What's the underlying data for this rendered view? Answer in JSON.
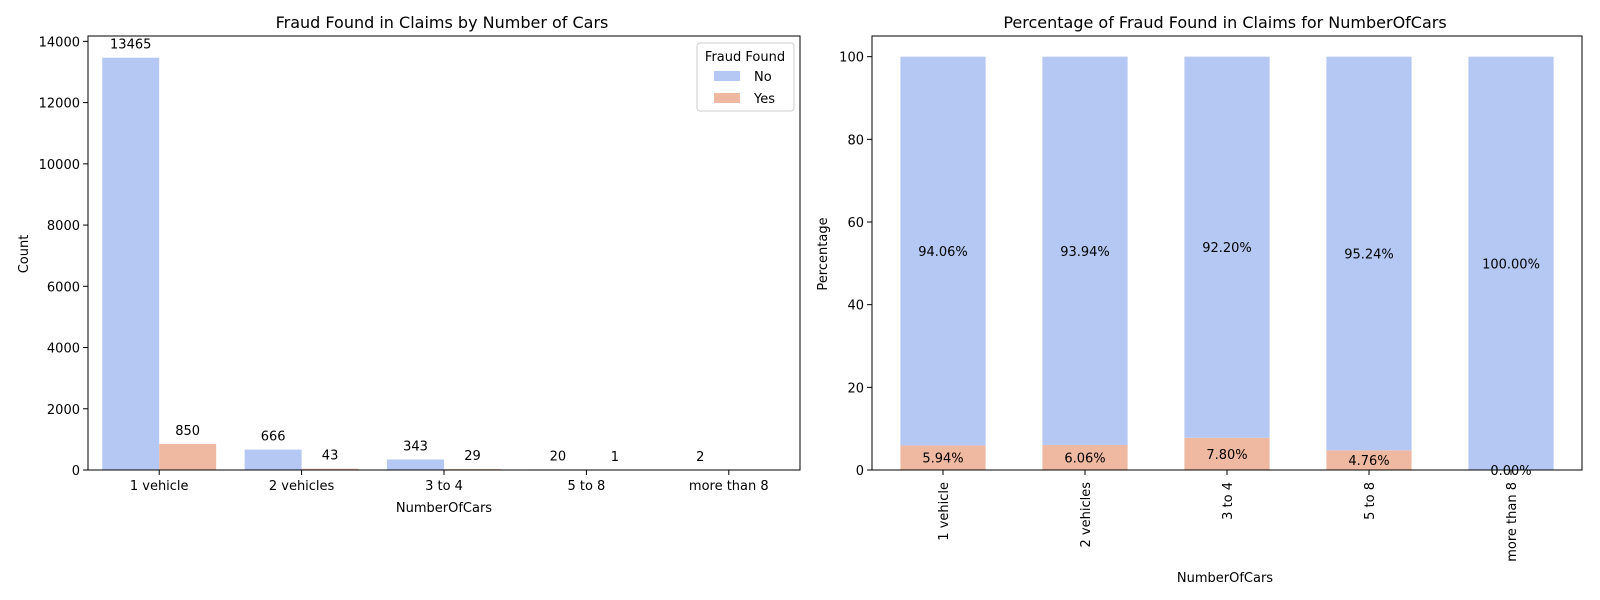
{
  "chart_data": [
    {
      "type": "bar",
      "title": "Fraud Found in Claims by Number of Cars",
      "xlabel": "NumberOfCars",
      "ylabel": "Count",
      "categories": [
        "1 vehicle",
        "2 vehicles",
        "3 to 4",
        "5 to 8",
        "more than 8"
      ],
      "series": [
        {
          "name": "No",
          "values": [
            13465,
            666,
            343,
            20,
            2
          ]
        },
        {
          "name": "Yes",
          "values": [
            850,
            43,
            29,
            1,
            0
          ]
        }
      ],
      "data_labels": [
        [
          "13465",
          "666",
          "343",
          "20",
          "2"
        ],
        [
          "850",
          "43",
          "29",
          "1",
          ""
        ]
      ],
      "ylim": [
        0,
        14175
      ],
      "yticks": [
        0,
        2000,
        4000,
        6000,
        8000,
        10000,
        12000,
        14000
      ],
      "legend": {
        "title": "Fraud Found",
        "placement": "top-right"
      },
      "colors": {
        "No": "#b4c8f3",
        "Yes": "#efb8a0"
      }
    },
    {
      "type": "bar",
      "stacked": true,
      "title": "Percentage of Fraud Found in Claims for NumberOfCars",
      "xlabel": "NumberOfCars",
      "ylabel": "Percentage",
      "categories": [
        "1 vehicle",
        "2 vehicles",
        "3 to 4",
        "5 to 8",
        "more than 8"
      ],
      "series": [
        {
          "name": "Yes",
          "values": [
            5.94,
            6.06,
            7.8,
            4.76,
            0.0
          ]
        },
        {
          "name": "No",
          "values": [
            94.06,
            93.94,
            92.2,
            95.24,
            100.0
          ]
        }
      ],
      "data_labels": [
        [
          "5.94%",
          "6.06%",
          "7.80%",
          "4.76%",
          "0.00%"
        ],
        [
          "94.06%",
          "93.94%",
          "92.20%",
          "95.24%",
          "100.00%"
        ]
      ],
      "ylim": [
        0,
        105
      ],
      "yticks": [
        0,
        20,
        40,
        60,
        80,
        100
      ],
      "colors": {
        "No": "#b4c8f3",
        "Yes": "#efb8a0"
      }
    }
  ]
}
